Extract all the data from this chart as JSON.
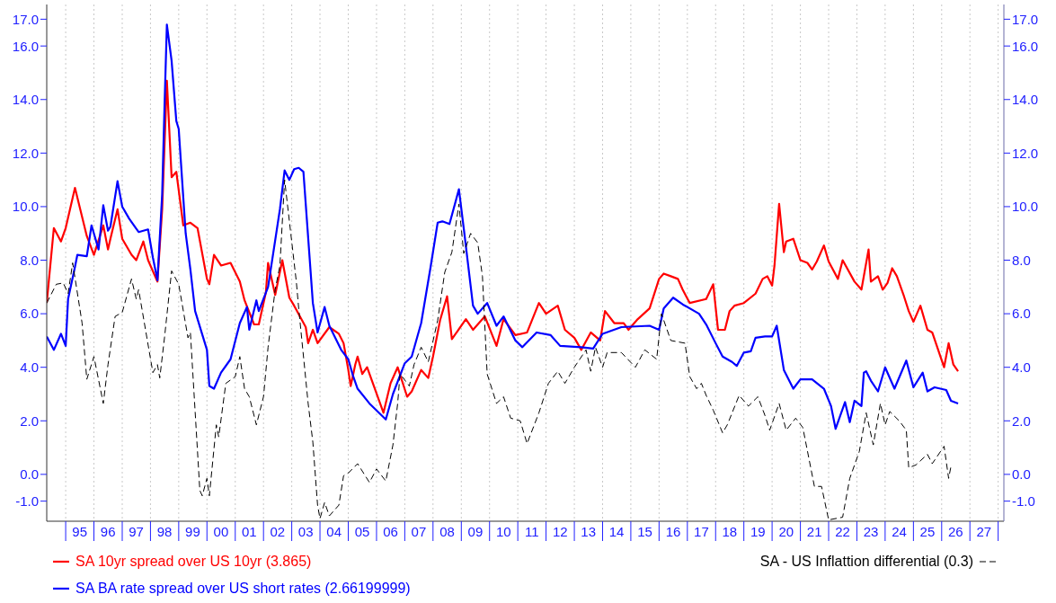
{
  "chart_data": {
    "type": "line",
    "legend": "bottom",
    "grid": "x",
    "ylim": [
      -1.75,
      17.55
    ],
    "y2lim": [
      -1.75,
      17.55
    ],
    "yticks": [
      {
        "value": -1,
        "label": "-1.0"
      },
      {
        "value": 0,
        "label": "0.0"
      },
      {
        "value": 2,
        "label": "2.0"
      },
      {
        "value": 4,
        "label": "4.0"
      },
      {
        "value": 6,
        "label": "6.0"
      },
      {
        "value": 8,
        "label": "8.0"
      },
      {
        "value": 10,
        "label": "10.0"
      },
      {
        "value": 12,
        "label": "12.0"
      },
      {
        "value": 14,
        "label": "14.0"
      },
      {
        "value": 16,
        "label": "16.0"
      },
      {
        "value": 17,
        "label": "17.0"
      }
    ],
    "y2ticks": [
      {
        "value": -1,
        "label": "-1.0"
      },
      {
        "value": 0,
        "label": "0.0"
      },
      {
        "value": 2,
        "label": "2.0"
      },
      {
        "value": 4,
        "label": "4.0"
      },
      {
        "value": 6,
        "label": "6.0"
      },
      {
        "value": 8,
        "label": "8.0"
      },
      {
        "value": 10,
        "label": "10.0"
      },
      {
        "value": 12,
        "label": "12.0"
      },
      {
        "value": 14,
        "label": "14.0"
      },
      {
        "value": 16,
        "label": "16.0"
      },
      {
        "value": 17,
        "label": "17.0"
      }
    ],
    "xlim": [
      "1994-05-01",
      "2028-03-15"
    ],
    "xticks": [
      {
        "value": "1995-01-01",
        "label": null
      },
      {
        "value": "1995-07-01",
        "label": "95"
      },
      {
        "value": "1996-01-01",
        "label": null
      },
      {
        "value": "1996-07-01",
        "label": "96"
      },
      {
        "value": "1997-01-01",
        "label": null
      },
      {
        "value": "1997-07-01",
        "label": "97"
      },
      {
        "value": "1998-01-01",
        "label": null
      },
      {
        "value": "1998-07-01",
        "label": "98"
      },
      {
        "value": "1999-01-01",
        "label": null
      },
      {
        "value": "1999-07-01",
        "label": "99"
      },
      {
        "value": "2000-01-01",
        "label": null
      },
      {
        "value": "2000-07-01",
        "label": "00"
      },
      {
        "value": "2001-01-01",
        "label": null
      },
      {
        "value": "2001-07-01",
        "label": "01"
      },
      {
        "value": "2002-01-01",
        "label": null
      },
      {
        "value": "2002-07-01",
        "label": "02"
      },
      {
        "value": "2003-01-01",
        "label": null
      },
      {
        "value": "2003-07-01",
        "label": "03"
      },
      {
        "value": "2004-01-01",
        "label": null
      },
      {
        "value": "2004-07-01",
        "label": "04"
      },
      {
        "value": "2005-01-01",
        "label": null
      },
      {
        "value": "2005-07-01",
        "label": "05"
      },
      {
        "value": "2006-01-01",
        "label": null
      },
      {
        "value": "2006-07-01",
        "label": "06"
      },
      {
        "value": "2007-01-01",
        "label": null
      },
      {
        "value": "2007-07-01",
        "label": "07"
      },
      {
        "value": "2008-01-01",
        "label": null
      },
      {
        "value": "2008-07-01",
        "label": "08"
      },
      {
        "value": "2009-01-01",
        "label": null
      },
      {
        "value": "2009-07-01",
        "label": "09"
      },
      {
        "value": "2010-01-01",
        "label": null
      },
      {
        "value": "2010-07-01",
        "label": "10"
      },
      {
        "value": "2011-01-01",
        "label": null
      },
      {
        "value": "2011-07-01",
        "label": "11"
      },
      {
        "value": "2012-01-01",
        "label": null
      },
      {
        "value": "2012-07-01",
        "label": "12"
      },
      {
        "value": "2013-01-01",
        "label": null
      },
      {
        "value": "2013-07-01",
        "label": "13"
      },
      {
        "value": "2014-01-01",
        "label": null
      },
      {
        "value": "2014-07-01",
        "label": "14"
      },
      {
        "value": "2015-01-01",
        "label": null
      },
      {
        "value": "2015-07-01",
        "label": "15"
      },
      {
        "value": "2016-01-01",
        "label": null
      },
      {
        "value": "2016-07-01",
        "label": "16"
      },
      {
        "value": "2017-01-01",
        "label": null
      },
      {
        "value": "2017-07-01",
        "label": "17"
      },
      {
        "value": "2018-01-01",
        "label": null
      },
      {
        "value": "2018-07-01",
        "label": "18"
      },
      {
        "value": "2019-01-01",
        "label": null
      },
      {
        "value": "2019-07-01",
        "label": "19"
      },
      {
        "value": "2020-01-01",
        "label": null
      },
      {
        "value": "2020-07-01",
        "label": "20"
      },
      {
        "value": "2021-01-01",
        "label": null
      },
      {
        "value": "2021-07-01",
        "label": "21"
      },
      {
        "value": "2022-01-01",
        "label": null
      },
      {
        "value": "2022-07-01",
        "label": "22"
      },
      {
        "value": "2023-01-01",
        "label": null
      },
      {
        "value": "2023-07-01",
        "label": "23"
      },
      {
        "value": "2024-01-01",
        "label": null
      },
      {
        "value": "2024-07-01",
        "label": "24"
      },
      {
        "value": "2025-01-01",
        "label": null
      },
      {
        "value": "2025-07-01",
        "label": "25"
      },
      {
        "value": "2026-01-01",
        "label": null
      },
      {
        "value": "2026-07-01",
        "label": "26"
      },
      {
        "value": "2027-01-01",
        "label": null
      },
      {
        "value": "2027-07-01",
        "label": "27"
      },
      {
        "value": "2028-01-01",
        "label": null
      }
    ],
    "series": [
      {
        "name": "SA 10yr spread over US 10yr (3.865)",
        "color": "#ff0000",
        "line_style": "solid",
        "x": [
          "1994-05",
          "1994-08",
          "1994-11",
          "1995-01",
          "1995-05",
          "1995-10",
          "1996-01",
          "1996-05",
          "1996-07",
          "1996-08",
          "1996-11",
          "1997-01",
          "1997-05",
          "1997-07",
          "1997-10",
          "1997-12",
          "1998-04",
          "1998-06",
          "1998-08",
          "1998-10",
          "1998-12",
          "1999-03",
          "1999-06",
          "1999-09",
          "2000-01",
          "2000-02",
          "2000-04",
          "2000-07",
          "2000-11",
          "2001-03",
          "2001-05",
          "2001-09",
          "2001-11",
          "2002-02",
          "2002-03",
          "2002-06",
          "2002-09",
          "2002-12",
          "2003-02",
          "2003-07",
          "2003-08",
          "2003-10",
          "2003-12",
          "2004-05",
          "2004-09",
          "2004-11",
          "2005-01",
          "2005-02",
          "2005-04",
          "2005-05",
          "2005-07",
          "2005-09",
          "2006-04",
          "2006-07",
          "2006-10",
          "2007-02",
          "2007-04",
          "2007-08",
          "2007-11",
          "2008-01",
          "2008-04",
          "2008-07",
          "2008-09",
          "2009-03",
          "2009-06",
          "2009-11",
          "2010-04",
          "2010-07",
          "2010-12",
          "2011-05",
          "2011-10",
          "2012-01",
          "2012-06",
          "2012-09",
          "2013-01",
          "2013-04",
          "2013-08",
          "2013-12",
          "2014-02",
          "2014-06",
          "2014-10",
          "2014-12",
          "2015-04",
          "2015-09",
          "2016-01",
          "2016-03",
          "2016-06",
          "2016-09",
          "2016-11",
          "2017-02",
          "2017-09",
          "2017-12",
          "2018-02",
          "2018-05",
          "2018-07",
          "2018-09",
          "2019-01",
          "2019-06",
          "2019-09",
          "2019-11",
          "2020-01",
          "2020-02",
          "2020-04",
          "2020-06",
          "2020-07",
          "2020-10",
          "2021-01",
          "2021-04",
          "2021-06",
          "2021-08",
          "2021-11",
          "2022-01",
          "2022-05",
          "2022-07",
          "2022-12",
          "2023-03",
          "2023-06",
          "2023-07",
          "2023-10",
          "2023-12",
          "2024-02",
          "2024-04",
          "2024-06",
          "2024-09",
          "2024-11",
          "2025-01",
          "2025-04",
          "2025-07",
          "2025-09",
          "2026-02",
          "2026-04",
          "2026-06",
          "2026-08"
        ],
        "values": [
          6.4,
          9.2,
          8.7,
          9.2,
          10.7,
          8.9,
          8.2,
          9.3,
          8.4,
          8.8,
          9.9,
          8.8,
          8.2,
          8.0,
          8.7,
          8.0,
          7.2,
          9.9,
          14.7,
          11.1,
          11.3,
          9.3,
          9.4,
          9.2,
          7.3,
          7.1,
          8.2,
          7.8,
          7.9,
          7.2,
          6.5,
          5.6,
          5.6,
          6.8,
          7.9,
          6.7,
          8.0,
          6.6,
          6.3,
          5.5,
          4.9,
          5.4,
          4.9,
          5.5,
          5.25,
          4.9,
          3.9,
          3.3,
          4.1,
          4.4,
          3.75,
          4.0,
          2.3,
          3.4,
          4.0,
          2.9,
          3.1,
          3.9,
          3.6,
          4.4,
          5.75,
          6.65,
          5.05,
          5.8,
          5.4,
          5.9,
          4.8,
          5.8,
          5.2,
          5.3,
          6.4,
          6.0,
          6.3,
          5.4,
          5.1,
          4.65,
          5.3,
          5.0,
          6.1,
          5.65,
          5.65,
          5.4,
          5.8,
          6.2,
          7.3,
          7.5,
          7.4,
          7.3,
          6.9,
          6.4,
          6.55,
          7.1,
          5.4,
          5.4,
          6.1,
          6.3,
          6.4,
          6.75,
          7.3,
          7.4,
          7.05,
          7.8,
          10.1,
          8.3,
          8.7,
          8.8,
          8.0,
          7.9,
          7.65,
          7.95,
          8.55,
          7.95,
          7.3,
          8.0,
          7.2,
          6.9,
          8.4,
          7.2,
          7.4,
          6.9,
          7.15,
          7.7,
          7.4,
          6.65,
          6.1,
          5.7,
          6.3,
          5.4,
          5.3,
          4.0,
          4.9,
          4.1,
          3.85
        ]
      },
      {
        "name": "SA BA rate spread over US short rates (2.66199999)",
        "color": "#0000ff",
        "line_style": "solid",
        "x": [
          "1994-05",
          "1994-08",
          "1994-11",
          "1995-01",
          "1995-02",
          "1995-05",
          "1995-06",
          "1995-10",
          "1995-12",
          "1996-03",
          "1996-05",
          "1996-07",
          "1996-08",
          "1996-11",
          "1997-01",
          "1997-04",
          "1997-08",
          "1997-12",
          "1998-02",
          "1998-04",
          "1998-06",
          "1998-07",
          "1998-08",
          "1998-10",
          "1998-12",
          "1999-01",
          "1999-04",
          "1999-06",
          "1999-08",
          "2000-01",
          "2000-02",
          "2000-04",
          "2000-07",
          "2000-11",
          "2001-03",
          "2001-06",
          "2001-07",
          "2001-10",
          "2001-11",
          "2002-03",
          "2002-08",
          "2002-10",
          "2002-12",
          "2003-02",
          "2003-04",
          "2003-06",
          "2003-10",
          "2003-12",
          "2004-03",
          "2004-05",
          "2004-10",
          "2005-01",
          "2005-03",
          "2005-05",
          "2005-10",
          "2006-05",
          "2006-08",
          "2007-01",
          "2007-04",
          "2007-08",
          "2007-12",
          "2008-03",
          "2008-05",
          "2008-08",
          "2008-12",
          "2009-02",
          "2009-06",
          "2009-08",
          "2009-12",
          "2010-04",
          "2010-07",
          "2010-12",
          "2011-03",
          "2011-09",
          "2012-03",
          "2012-07",
          "2013-04",
          "2013-09",
          "2014-01",
          "2014-09",
          "2015-09",
          "2016-01",
          "2016-03",
          "2016-07",
          "2016-11",
          "2017-06",
          "2017-09",
          "2018-01",
          "2018-04",
          "2018-08",
          "2018-10",
          "2019-01",
          "2019-04",
          "2019-06",
          "2019-10",
          "2020-01",
          "2020-03",
          "2020-06",
          "2020-10",
          "2021-01",
          "2021-06",
          "2021-11",
          "2022-02",
          "2022-04",
          "2022-08",
          "2022-10",
          "2022-12",
          "2023-03",
          "2023-04",
          "2023-05",
          "2023-07",
          "2023-10",
          "2024-01",
          "2024-05",
          "2024-10",
          "2025-01",
          "2025-05",
          "2025-07",
          "2025-10",
          "2026-03",
          "2026-05",
          "2026-08"
        ],
        "values": [
          5.15,
          4.65,
          5.25,
          4.8,
          6.55,
          7.75,
          8.2,
          8.15,
          9.3,
          8.4,
          10.05,
          9.1,
          9.25,
          10.95,
          10.0,
          9.55,
          9.05,
          9.15,
          8.1,
          7.25,
          10.45,
          13.7,
          16.8,
          15.45,
          13.2,
          12.9,
          9.0,
          7.65,
          6.1,
          4.65,
          3.3,
          3.2,
          3.8,
          4.3,
          5.65,
          6.25,
          5.4,
          6.5,
          6.1,
          7.0,
          9.9,
          11.35,
          11.0,
          11.4,
          11.45,
          11.3,
          6.4,
          5.3,
          6.25,
          5.55,
          4.65,
          4.3,
          3.7,
          3.2,
          2.65,
          2.05,
          3.0,
          4.15,
          4.4,
          5.65,
          7.75,
          9.4,
          9.45,
          9.35,
          10.65,
          9.2,
          6.3,
          6.0,
          6.4,
          5.55,
          5.9,
          5.0,
          4.75,
          5.3,
          5.2,
          4.8,
          4.75,
          4.7,
          5.25,
          5.5,
          5.55,
          5.4,
          6.2,
          6.6,
          6.35,
          6.0,
          5.6,
          4.9,
          4.4,
          4.2,
          4.05,
          4.55,
          4.6,
          5.1,
          5.15,
          5.15,
          5.55,
          3.9,
          3.2,
          3.55,
          3.55,
          3.2,
          2.55,
          1.7,
          2.7,
          1.95,
          2.75,
          2.55,
          3.8,
          3.85,
          3.5,
          3.1,
          4.0,
          3.2,
          4.25,
          3.25,
          3.8,
          3.1,
          3.25,
          3.15,
          2.75,
          2.65
        ]
      },
      {
        "name": "SA - US Inflattion differential (0.3)",
        "color": "#000000",
        "line_style": "dashed",
        "x": [
          "1994-05",
          "1994-09",
          "1994-12",
          "1995-02",
          "1995-04",
          "1995-08",
          "1995-10",
          "1996-01",
          "1996-05",
          "1996-07",
          "1996-10",
          "1997-01",
          "1997-05",
          "1997-07",
          "1997-08",
          "1998-02",
          "1998-04",
          "1998-05",
          "1998-07",
          "1998-10",
          "1999-01",
          "1999-05",
          "1999-06",
          "1999-10",
          "1999-11",
          "2000-01",
          "2000-02",
          "2000-05",
          "2000-06",
          "2000-09",
          "2001-01",
          "2001-03",
          "2001-05",
          "2001-07",
          "2001-10",
          "2002-01",
          "2002-03",
          "2002-06",
          "2002-08",
          "2002-10",
          "2003-03",
          "2003-04",
          "2003-08",
          "2003-10",
          "2003-12",
          "2004-01",
          "2004-03",
          "2004-05",
          "2004-09",
          "2004-11",
          "2005-01",
          "2005-05",
          "2005-10",
          "2006-01",
          "2006-05",
          "2006-08",
          "2006-10",
          "2006-11",
          "2007-03",
          "2007-05",
          "2007-08",
          "2007-11",
          "2008-03",
          "2008-06",
          "2008-09",
          "2008-12",
          "2009-02",
          "2009-05",
          "2009-08",
          "2009-10",
          "2009-12",
          "2010-04",
          "2010-07",
          "2010-10",
          "2011-02",
          "2011-05",
          "2011-10",
          "2012-02",
          "2012-06",
          "2012-09",
          "2013-01",
          "2013-06",
          "2013-08",
          "2013-10",
          "2014-01",
          "2014-03",
          "2014-09",
          "2015-03",
          "2015-07",
          "2015-12",
          "2016-02",
          "2016-06",
          "2016-12",
          "2017-02",
          "2017-05",
          "2017-07",
          "2017-09",
          "2017-12",
          "2018-04",
          "2018-06",
          "2018-11",
          "2019-03",
          "2019-07",
          "2019-10",
          "2019-12",
          "2020-04",
          "2020-07",
          "2020-11",
          "2021-02",
          "2021-07",
          "2021-10",
          "2022-01",
          "2022-07",
          "2022-10",
          "2023-02",
          "2023-05",
          "2023-08",
          "2023-11",
          "2024-01",
          "2024-03",
          "2024-07",
          "2024-10",
          "2024-11",
          "2025-02",
          "2025-07",
          "2025-09",
          "2026-02",
          "2026-04",
          "2026-05"
        ],
        "values": [
          6.4,
          7.1,
          7.15,
          6.75,
          7.9,
          5.65,
          3.55,
          4.4,
          2.65,
          4.1,
          5.9,
          6.05,
          7.3,
          6.55,
          6.9,
          3.8,
          4.1,
          3.6,
          5.1,
          7.6,
          7.1,
          5.1,
          5.3,
          -0.6,
          -0.8,
          -0.15,
          -0.8,
          1.85,
          1.4,
          3.4,
          3.65,
          4.4,
          3.2,
          2.9,
          1.85,
          2.9,
          4.75,
          6.9,
          7.8,
          11.0,
          7.2,
          6.2,
          2.65,
          1.2,
          -1.15,
          -1.65,
          -1.05,
          -1.55,
          -1.15,
          -0.05,
          0.05,
          0.4,
          -0.3,
          0.2,
          -0.25,
          1.1,
          2.65,
          3.75,
          3.3,
          4.1,
          4.75,
          4.2,
          5.75,
          7.55,
          8.3,
          10.1,
          8.25,
          9.0,
          8.65,
          7.4,
          3.75,
          2.65,
          2.9,
          2.1,
          2.0,
          1.15,
          2.3,
          3.4,
          3.85,
          3.4,
          4.0,
          4.65,
          3.85,
          4.75,
          4.0,
          4.55,
          4.55,
          4.0,
          4.65,
          4.3,
          6.0,
          5.0,
          4.9,
          3.65,
          3.2,
          3.4,
          2.95,
          2.4,
          1.55,
          1.85,
          2.95,
          2.55,
          2.9,
          2.2,
          1.65,
          2.65,
          1.65,
          2.1,
          1.75,
          -0.45,
          -0.45,
          -1.7,
          -1.6,
          -0.15,
          0.85,
          2.3,
          1.1,
          2.65,
          1.85,
          2.35,
          2.0,
          1.65,
          0.25,
          0.35,
          0.75,
          0.4,
          1.05,
          -0.15,
          0.3
        ]
      }
    ]
  }
}
